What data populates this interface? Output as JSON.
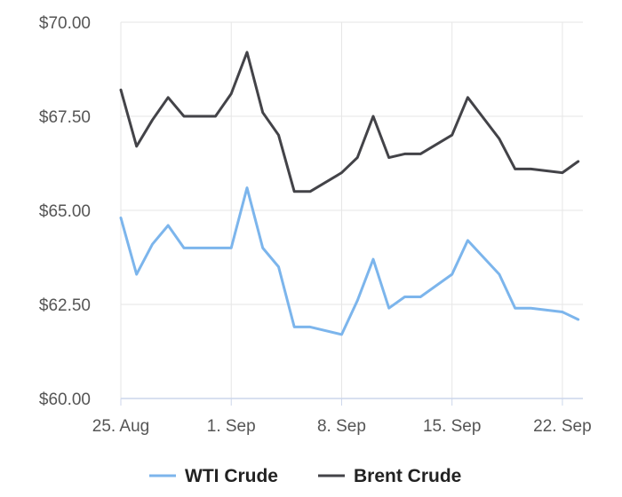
{
  "chart_data": {
    "type": "line",
    "x_start": "2025-08-25",
    "x": [
      "2025-08-25",
      "2025-08-26",
      "2025-08-27",
      "2025-08-28",
      "2025-08-29",
      "2025-08-31",
      "2025-09-01",
      "2025-09-02",
      "2025-09-03",
      "2025-09-04",
      "2025-09-05",
      "2025-09-06",
      "2025-09-08",
      "2025-09-09",
      "2025-09-10",
      "2025-09-11",
      "2025-09-12",
      "2025-09-13",
      "2025-09-15",
      "2025-09-16",
      "2025-09-18",
      "2025-09-19",
      "2025-09-20",
      "2025-09-22",
      "2025-09-23"
    ],
    "series": [
      {
        "name": "WTI Crude",
        "color": "#7cb5ec",
        "values": [
          64.8,
          63.3,
          64.1,
          64.6,
          64.0,
          64.0,
          64.0,
          65.6,
          64.0,
          63.5,
          61.9,
          61.9,
          61.7,
          62.6,
          63.7,
          62.4,
          62.7,
          62.7,
          63.3,
          64.2,
          63.3,
          62.4,
          62.4,
          62.3,
          62.1
        ]
      },
      {
        "name": "Brent Crude",
        "color": "#434348",
        "values": [
          68.2,
          66.7,
          67.4,
          68.0,
          67.5,
          67.5,
          68.1,
          69.2,
          67.6,
          67.0,
          65.5,
          65.5,
          66.0,
          66.4,
          67.5,
          66.4,
          66.5,
          66.5,
          67.0,
          68.0,
          66.9,
          66.1,
          66.1,
          66.0,
          66.3
        ]
      }
    ],
    "y_ticks": [
      60,
      62.5,
      65,
      67.5,
      70
    ],
    "y_tick_labels": [
      "$60.00",
      "$62.50",
      "$65.00",
      "$67.50",
      "$70.00"
    ],
    "ylim": [
      60,
      70
    ],
    "x_ticks": [
      0,
      7,
      14,
      21,
      28
    ],
    "x_tick_labels": [
      "25. Aug",
      "1. Sep",
      "8. Sep",
      "15. Sep",
      "22. Sep"
    ],
    "xlim": [
      0,
      29.3
    ],
    "grid": true,
    "legend": "bottom-center",
    "title": "",
    "xlabel": "",
    "ylabel": ""
  }
}
